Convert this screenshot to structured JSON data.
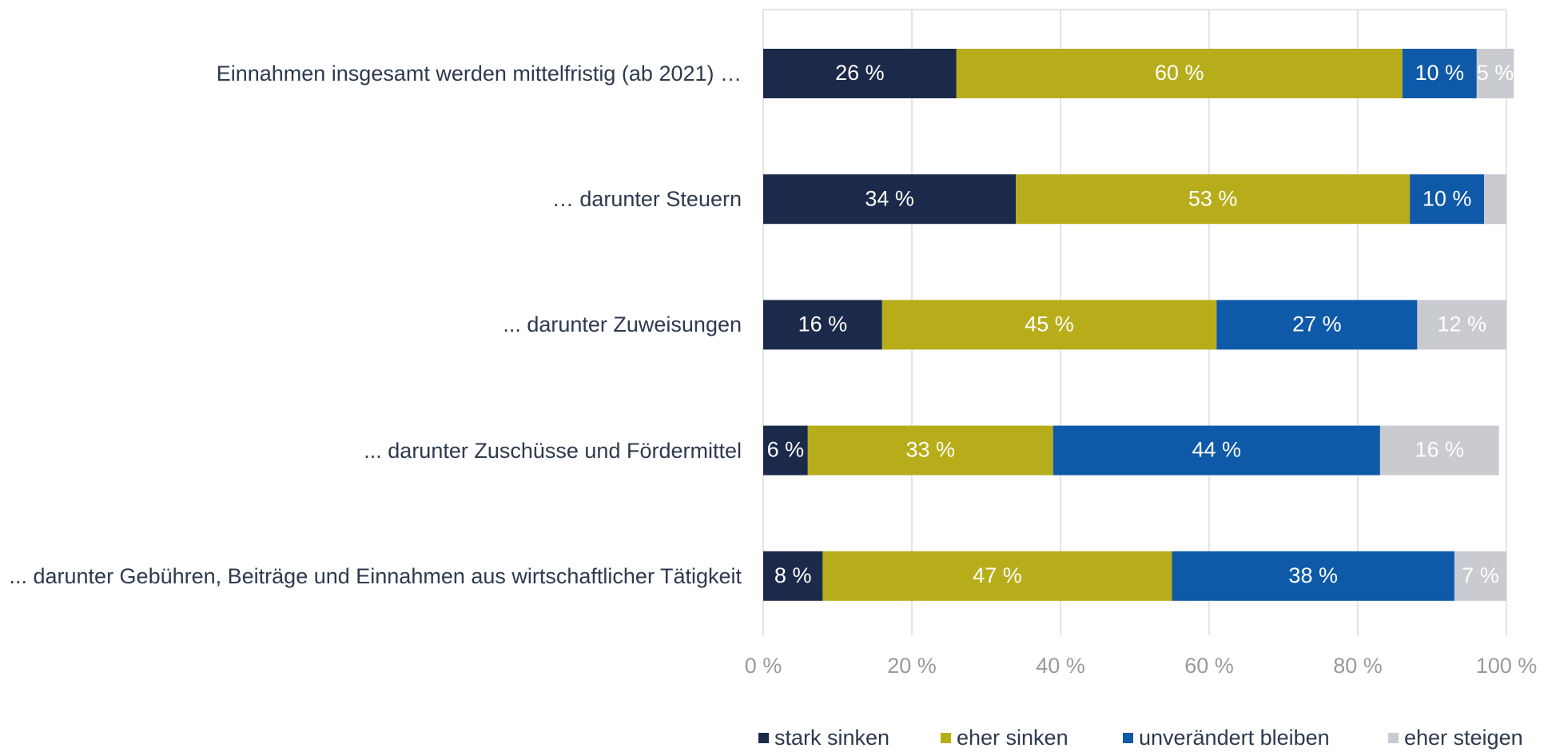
{
  "chart_data": {
    "type": "bar",
    "orientation": "horizontal",
    "stacked": true,
    "categories": [
      "Einnahmen insgesamt werden mittelfristig (ab 2021) …",
      "… darunter Steuern",
      "... darunter Zuweisungen",
      "... darunter Zuschüsse und Fördermittel",
      "... darunter Gebühren, Beiträge und Einnahmen aus wirtschaftlicher Tätigkeit"
    ],
    "series": [
      {
        "name": "stark sinken",
        "color": "#1b2a4a",
        "values": [
          26,
          34,
          16,
          6,
          8
        ],
        "value_labels": [
          "26 %",
          "34 %",
          "16 %",
          "6 %",
          "8 %"
        ]
      },
      {
        "name": "eher sinken",
        "color": "#b7ad1a",
        "values": [
          60,
          53,
          45,
          33,
          47
        ],
        "value_labels": [
          "60 %",
          "53 %",
          "45 %",
          "33 %",
          "47 %"
        ]
      },
      {
        "name": "unverändert bleiben",
        "color": "#0f5aa8",
        "values": [
          10,
          10,
          27,
          44,
          38
        ],
        "value_labels": [
          "10 %",
          "10 %",
          "27 %",
          "44 %",
          "38 %"
        ]
      },
      {
        "name": "eher steigen",
        "color": "#c9cbd1",
        "values": [
          5,
          3,
          12,
          16,
          7
        ],
        "value_labels": [
          "5 %",
          null,
          "12 %",
          "16 %",
          "7 %"
        ]
      }
    ],
    "xlim": [
      0,
      100
    ],
    "xticks": [
      {
        "value": 0,
        "label": "0 %"
      },
      {
        "value": 20,
        "label": "20 %"
      },
      {
        "value": 40,
        "label": "40 %"
      },
      {
        "value": 60,
        "label": "60 %"
      },
      {
        "value": 80,
        "label": "80 %"
      },
      {
        "value": 100,
        "label": "100 %"
      }
    ],
    "grid": true,
    "legend": "bottom"
  }
}
